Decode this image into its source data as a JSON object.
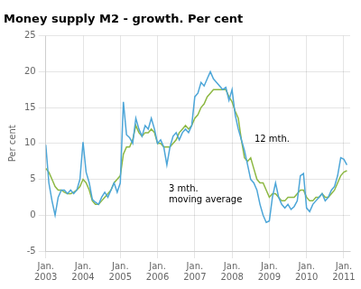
{
  "chart_data": {
    "type": "line",
    "title": "Money supply M2 - growth. Per cent",
    "y_label": "Per cent",
    "xlim": [
      2003.0,
      2011.17
    ],
    "xticks": [
      {
        "value": 2003.0,
        "label": "Jan.\n2003"
      },
      {
        "value": 2004.0,
        "label": "Jan.\n2004"
      },
      {
        "value": 2005.0,
        "label": "Jan.\n2005"
      },
      {
        "value": 2006.0,
        "label": "Jan.\n2006"
      },
      {
        "value": 2007.0,
        "label": "Jan.\n2007"
      },
      {
        "value": 2008.0,
        "label": "Jan.\n2008"
      },
      {
        "value": 2009.0,
        "label": "Jan.\n2009"
      },
      {
        "value": 2010.0,
        "label": "Jan.\n2010"
      },
      {
        "value": 2011.0,
        "label": "Jan.\n2011"
      }
    ],
    "ylim": [
      -5,
      25
    ],
    "yticks": [
      -5,
      0,
      5,
      10,
      15,
      20,
      25
    ],
    "grid": true,
    "annotations": [
      {
        "text": "3 mth.\nmoving average",
        "x": 2006.3,
        "y": 4.2
      },
      {
        "text": "12 mth.",
        "x": 2008.6,
        "y": 10.5
      }
    ],
    "x": [
      2003.0,
      2003.083,
      2003.167,
      2003.25,
      2003.333,
      2003.417,
      2003.5,
      2003.583,
      2003.667,
      2003.75,
      2003.833,
      2003.917,
      2004.0,
      2004.083,
      2004.167,
      2004.25,
      2004.333,
      2004.417,
      2004.5,
      2004.583,
      2004.667,
      2004.75,
      2004.833,
      2004.917,
      2005.0,
      2005.083,
      2005.167,
      2005.25,
      2005.333,
      2005.417,
      2005.5,
      2005.583,
      2005.667,
      2005.75,
      2005.833,
      2005.917,
      2006.0,
      2006.083,
      2006.167,
      2006.25,
      2006.333,
      2006.417,
      2006.5,
      2006.583,
      2006.667,
      2006.75,
      2006.833,
      2006.917,
      2007.0,
      2007.083,
      2007.167,
      2007.25,
      2007.333,
      2007.417,
      2007.5,
      2007.583,
      2007.667,
      2007.75,
      2007.833,
      2007.917,
      2008.0,
      2008.083,
      2008.167,
      2008.25,
      2008.333,
      2008.417,
      2008.5,
      2008.583,
      2008.667,
      2008.75,
      2008.833,
      2008.917,
      2009.0,
      2009.083,
      2009.167,
      2009.25,
      2009.333,
      2009.417,
      2009.5,
      2009.583,
      2009.667,
      2009.75,
      2009.833,
      2009.917,
      2010.0,
      2010.083,
      2010.167,
      2010.25,
      2010.333,
      2010.417,
      2010.5,
      2010.583,
      2010.667,
      2010.75,
      2010.833,
      2010.917,
      2011.0,
      2011.083
    ],
    "series": [
      {
        "color": "#4da6d8",
        "values": [
          9.8,
          4.5,
          2.0,
          0.0,
          2.5,
          3.5,
          3.5,
          3.0,
          3.5,
          3.0,
          3.5,
          5.0,
          10.2,
          6.0,
          4.5,
          2.2,
          1.8,
          1.5,
          2.5,
          3.2,
          2.5,
          3.5,
          4.5,
          3.2,
          4.5,
          15.8,
          11.2,
          10.8,
          10.0,
          13.5,
          12.0,
          11.0,
          12.5,
          12.0,
          13.5,
          12.0,
          10.0,
          10.5,
          9.5,
          7.0,
          9.5,
          11.0,
          11.5,
          10.5,
          11.5,
          12.0,
          11.5,
          12.5,
          16.5,
          17.0,
          18.5,
          18.0,
          19.0,
          20.0,
          19.0,
          18.5,
          18.0,
          17.5,
          17.8,
          16.0,
          17.5,
          14.0,
          12.0,
          10.5,
          9.0,
          7.0,
          5.0,
          4.5,
          3.5,
          1.5,
          0.0,
          -1.0,
          -0.8,
          2.5,
          4.5,
          2.5,
          1.5,
          1.0,
          1.5,
          0.8,
          1.2,
          2.0,
          5.5,
          5.8,
          1.0,
          0.5,
          1.5,
          2.0,
          2.5,
          3.0,
          2.0,
          2.5,
          3.5,
          4.0,
          5.5,
          8.0,
          7.8,
          7.0
        ]
      },
      {
        "color": "#8db843",
        "values": [
          6.5,
          6.0,
          5.0,
          4.0,
          3.5,
          3.5,
          3.2,
          3.0,
          3.0,
          3.2,
          3.5,
          4.0,
          5.0,
          4.5,
          3.5,
          2.0,
          1.5,
          1.5,
          2.0,
          2.5,
          3.0,
          3.5,
          4.5,
          5.0,
          5.5,
          8.5,
          9.5,
          9.5,
          10.5,
          12.5,
          11.5,
          11.0,
          11.5,
          11.5,
          12.0,
          11.5,
          10.0,
          10.0,
          9.5,
          9.5,
          9.5,
          10.0,
          10.5,
          11.5,
          12.0,
          12.5,
          12.0,
          12.5,
          13.5,
          14.0,
          15.0,
          15.5,
          16.5,
          17.0,
          17.5,
          17.5,
          17.5,
          17.5,
          17.5,
          16.5,
          15.8,
          14.5,
          13.5,
          10.5,
          8.0,
          7.5,
          8.0,
          6.5,
          5.0,
          4.5,
          4.5,
          3.5,
          2.5,
          3.0,
          3.0,
          2.5,
          2.0,
          2.0,
          2.5,
          2.5,
          2.5,
          3.0,
          3.5,
          3.5,
          2.5,
          2.0,
          2.0,
          2.5,
          2.5,
          3.0,
          2.5,
          2.5,
          3.0,
          3.5,
          4.5,
          5.5,
          6.0,
          6.2
        ]
      }
    ]
  }
}
